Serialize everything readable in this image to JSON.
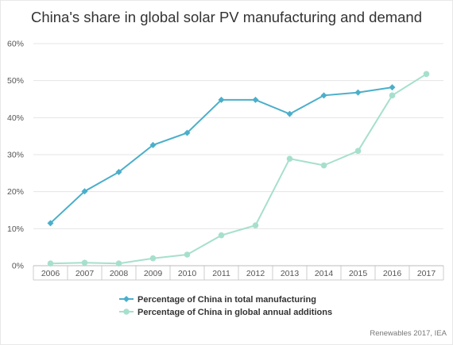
{
  "chart_data": {
    "type": "line",
    "title": "China's share in global solar PV manufacturing and demand",
    "categories": [
      "2006",
      "2007",
      "2008",
      "2009",
      "2010",
      "2011",
      "2012",
      "2013",
      "2014",
      "2015",
      "2016",
      "2017"
    ],
    "ylim": [
      0,
      60
    ],
    "yticks": [
      "0%",
      "10%",
      "20%",
      "30%",
      "40%",
      "50%",
      "60%"
    ],
    "grid": true,
    "legend_position": "bottom",
    "series": [
      {
        "name": "Percentage of China in total manufacturing",
        "color": "#4bafca",
        "marker": "diamond",
        "values": [
          11.5,
          20.1,
          25.3,
          32.6,
          35.9,
          44.8,
          44.8,
          41.0,
          46.0,
          46.8,
          48.2,
          null
        ]
      },
      {
        "name": "Percentage of China in global annual additions",
        "color": "#a6e0cc",
        "marker": "circle",
        "values": [
          0.6,
          0.8,
          0.6,
          2.0,
          3.0,
          8.2,
          10.9,
          28.9,
          27.1,
          31.0,
          46.0,
          51.8
        ]
      }
    ],
    "source": "Renewables 2017, IEA"
  }
}
